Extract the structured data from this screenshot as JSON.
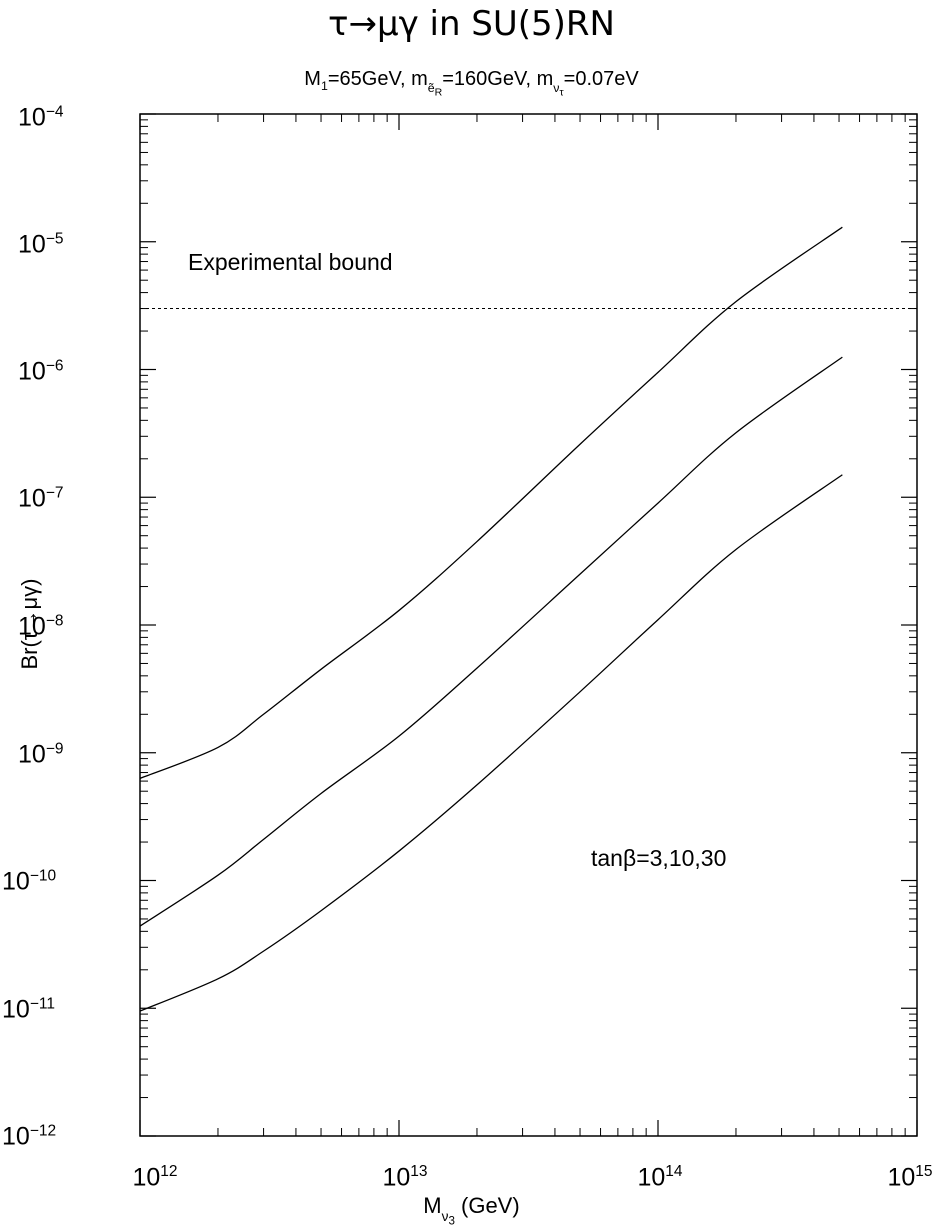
{
  "chart_data": {
    "type": "line",
    "title": "τ→μγ in SU(5)RN",
    "subtitle": {
      "part1": "M",
      "part1_sub": "1",
      "part2": "=65GeV, m",
      "part2_sub": "ẽ",
      "part2_subsub": "R",
      "part3": "=160GeV, m",
      "part3_sub": "ν",
      "part3_subsub": "τ",
      "part4": "=0.07eV"
    },
    "xlabel": {
      "main": "M",
      "sub": "ν",
      "subsub": "3",
      "unit": " (GeV)"
    },
    "ylabel": "Br(τ→μγ)",
    "xscale": "log",
    "yscale": "log",
    "xlim": [
      1000000000000.0,
      1000000000000000.0
    ],
    "ylim": [
      1e-12,
      0.0001
    ],
    "x_ticks": [
      {
        "base": "10",
        "exp": "12"
      },
      {
        "base": "10",
        "exp": "13"
      },
      {
        "base": "10",
        "exp": "14"
      },
      {
        "base": "10",
        "exp": "15"
      }
    ],
    "y_ticks": [
      {
        "base": "10",
        "exp": "−4"
      },
      {
        "base": "10",
        "exp": "−5"
      },
      {
        "base": "10",
        "exp": "−6"
      },
      {
        "base": "10",
        "exp": "−7"
      },
      {
        "base": "10",
        "exp": "−8"
      },
      {
        "base": "10",
        "exp": "−9"
      },
      {
        "base": "10",
        "exp": "−10"
      },
      {
        "base": "10",
        "exp": "−11"
      },
      {
        "base": "10",
        "exp": "−12"
      }
    ],
    "series": [
      {
        "x": [
          1000000000000.0,
          2000000000000.0,
          3000000000000.0,
          5000000000000.0,
          10000000000000.0,
          20000000000000.0,
          50000000000000.0,
          100000000000000.0,
          200000000000000.0,
          515000000000000.0
        ],
        "y": [
          6.3e-10,
          1.1e-09,
          2e-09,
          4.5e-09,
          1.3e-08,
          4.5e-08,
          2.6e-07,
          9.5e-07,
          3.4e-06,
          1.3e-05
        ]
      },
      {
        "x": [
          1000000000000.0,
          2000000000000.0,
          3000000000000.0,
          5000000000000.0,
          10000000000000.0,
          20000000000000.0,
          50000000000000.0,
          100000000000000.0,
          200000000000000.0,
          515000000000000.0
        ],
        "y": [
          4.4e-11,
          1.1e-10,
          2.1e-10,
          4.8e-10,
          1.35e-09,
          4.6e-09,
          2.5e-08,
          9e-08,
          3.2e-07,
          1.25e-06
        ]
      },
      {
        "x": [
          1000000000000.0,
          2000000000000.0,
          3000000000000.0,
          5000000000000.0,
          10000000000000.0,
          20000000000000.0,
          50000000000000.0,
          100000000000000.0,
          200000000000000.0,
          515000000000000.0
        ],
        "y": [
          9.5e-12,
          1.7e-11,
          2.8e-11,
          5.8e-11,
          1.7e-10,
          5.6e-10,
          3e-09,
          1.1e-08,
          3.9e-08,
          1.5e-07
        ]
      }
    ],
    "bound": {
      "y": 3e-06,
      "style": "dashed"
    },
    "annotations": {
      "bound_label": "Experimental bound",
      "tanb_label": "tanβ=3,10,30"
    }
  }
}
